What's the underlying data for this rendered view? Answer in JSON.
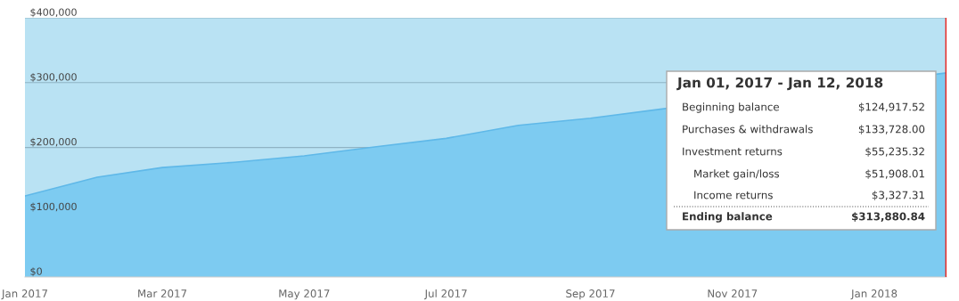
{
  "chart_data": {
    "type": "area",
    "x": [
      "2017-01",
      "2017-02",
      "2017-03",
      "2017-04",
      "2017-05",
      "2017-06",
      "2017-07",
      "2017-08",
      "2017-09",
      "2017-10",
      "2018-02"
    ],
    "series": [
      {
        "color": "#7dcbf1",
        "values": [
          125000,
          154000,
          169000,
          177000,
          187000,
          201000,
          214000,
          234000,
          245000,
          259000,
          315000
        ]
      }
    ],
    "xlim": [
      "2017-01",
      "2018-02"
    ],
    "xticks": [
      {
        "value": "2017-01",
        "label": "Jan 2017"
      },
      {
        "value": "2017-03",
        "label": "Mar 2017"
      },
      {
        "value": "2017-05",
        "label": "May 2017"
      },
      {
        "value": "2017-07",
        "label": "Jul 2017"
      },
      {
        "value": "2017-09",
        "label": "Sep 2017"
      },
      {
        "value": "2017-11",
        "label": "Nov 2017"
      },
      {
        "value": "2018-01",
        "label": "Jan 2018"
      }
    ],
    "ylim": [
      0,
      400000
    ],
    "yticks": [
      {
        "value": 0,
        "label": "$0"
      },
      {
        "value": 100000,
        "label": "$100,000"
      },
      {
        "value": 200000,
        "label": "$200,000"
      },
      {
        "value": 300000,
        "label": "$300,000"
      },
      {
        "value": 400000,
        "label": "$400,000"
      }
    ],
    "grid": "y",
    "bands": [
      {
        "axis": "y",
        "from": 0,
        "to": 400000,
        "color": "#b9e2f3"
      }
    ],
    "ref_lines": [
      {
        "axis": "x",
        "value": "2018-02",
        "color": "#e8231d"
      }
    ],
    "annotations": [
      "Jan 01, 2017 - Jan 12, 2018",
      "Beginning balance",
      "$124,917.52",
      "Purchases & withdrawals",
      "$133,728.00",
      "Investment returns",
      "$55,235.32",
      "Market gain/loss",
      "$51,908.01",
      "Income returns",
      "$3,327.31",
      "Ending balance",
      "$313,880.84"
    ]
  }
}
